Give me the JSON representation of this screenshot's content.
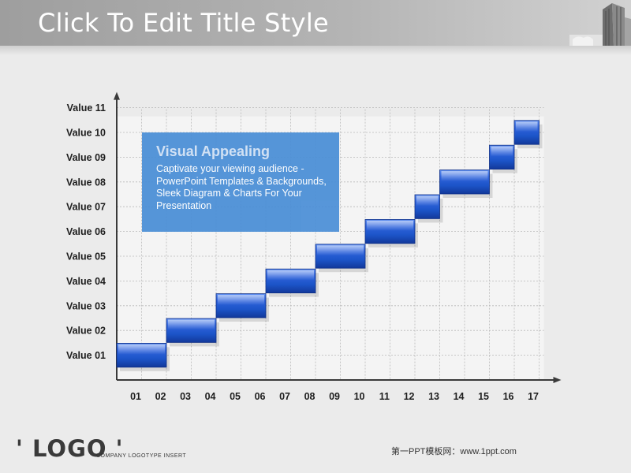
{
  "slide": {
    "title": "Click To Edit Title Style",
    "logo": "' LOGO '",
    "logo_sub": "COMPANY LOGOTYPE INSERT",
    "footer_credit": "第一PPT模板网：www.1ppt.com"
  },
  "callout": {
    "title": "Visual Appealing",
    "body": "Captivate your viewing audience - PowerPoint Templates & Backgrounds, Sleek Diagram & Charts For Your Presentation"
  },
  "chart_data": {
    "type": "bar",
    "subtype": "step (floating horizontal bars)",
    "title": "",
    "xlabel": "",
    "ylabel": "",
    "x_ticks": [
      "01",
      "02",
      "03",
      "04",
      "05",
      "06",
      "07",
      "08",
      "09",
      "10",
      "11",
      "12",
      "13",
      "14",
      "15",
      "16",
      "17"
    ],
    "y_ticks": [
      "Value 01",
      "Value 02",
      "Value 03",
      "Value 04",
      "Value 05",
      "Value 06",
      "Value 07",
      "Value 08",
      "Value 09",
      "Value 10",
      "Value 11"
    ],
    "grid": true,
    "bar_color": "#1c54c8",
    "bars": [
      {
        "x_start": 0,
        "x_end": 2,
        "y": 1
      },
      {
        "x_start": 2,
        "x_end": 4,
        "y": 2
      },
      {
        "x_start": 4,
        "x_end": 6,
        "y": 3
      },
      {
        "x_start": 6,
        "x_end": 8,
        "y": 4
      },
      {
        "x_start": 8,
        "x_end": 10,
        "y": 5
      },
      {
        "x_start": 10,
        "x_end": 12,
        "y": 6
      },
      {
        "x_start": 12,
        "x_end": 13,
        "y": 7
      },
      {
        "x_start": 13,
        "x_end": 15,
        "y": 8
      },
      {
        "x_start": 15,
        "x_end": 16,
        "y": 9
      },
      {
        "x_start": 16,
        "x_end": 17,
        "y": 10
      }
    ]
  },
  "colors": {
    "accent": "#1c54c8",
    "callout_fill": "#4a8ed6",
    "grid": "#b8b8b8",
    "axis": "#3a3a3a"
  }
}
